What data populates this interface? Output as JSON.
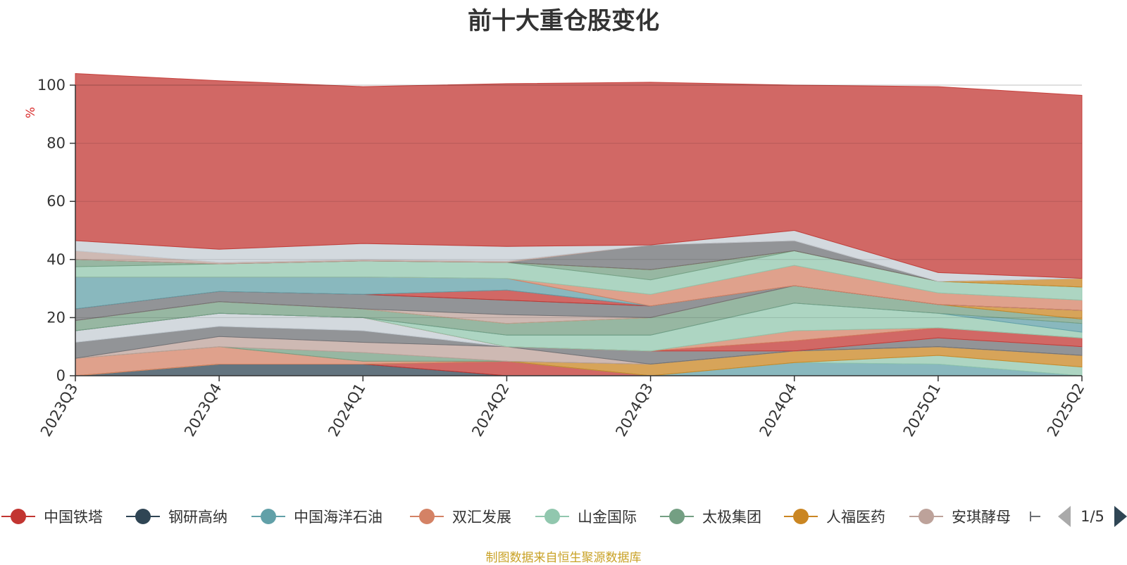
{
  "chart_data": {
    "type": "area",
    "title": "前十大重仓股变化",
    "ylabel": "%",
    "ylim": [
      0,
      100
    ],
    "yticks": [
      0,
      20,
      40,
      60,
      80,
      100
    ],
    "categories": [
      "2023Q3",
      "2023Q4",
      "2024Q1",
      "2024Q2",
      "2024Q3",
      "2024Q4",
      "2025Q1",
      "2025Q2"
    ],
    "stacked": true,
    "series": [
      {
        "name": "钢研高纳",
        "color": "#2f4554",
        "values": [
          0,
          4,
          4,
          0,
          0,
          0,
          0,
          0
        ]
      },
      {
        "name": "中国铁塔",
        "color": "#c23531",
        "values": [
          0,
          0,
          0,
          5,
          0,
          0,
          0,
          0
        ]
      },
      {
        "name": "中国海洋石油",
        "color": "#61a0a8",
        "values": [
          0,
          0,
          0,
          0,
          0,
          4.5,
          4,
          0
        ]
      },
      {
        "name": "山金国际",
        "color": "#91c7ae",
        "values": [
          0,
          0,
          0,
          0,
          0,
          0,
          3,
          3
        ]
      },
      {
        "name": "人福医药",
        "color": "#ca8622",
        "values": [
          0,
          0,
          0,
          0,
          4,
          4,
          3,
          4
        ]
      },
      {
        "name": "双汇发展",
        "color": "#d48265",
        "values": [
          6,
          6,
          1,
          0,
          0,
          0,
          0,
          0
        ]
      },
      {
        "name": "太极集团",
        "color": "#749f83",
        "values": [
          0,
          0,
          3,
          0,
          0,
          0,
          0,
          0
        ]
      },
      {
        "name": "安琪酵母",
        "color": "#bda29a",
        "values": [
          0,
          3.5,
          3.5,
          5,
          0,
          0,
          0,
          0
        ]
      },
      {
        "name": "",
        "color": "#6e7074",
        "values": [
          5.5,
          3.5,
          4,
          0,
          4.5,
          0,
          3,
          3
        ]
      },
      {
        "name": "",
        "color": "#c4ccd3",
        "values": [
          4,
          4.5,
          4.5,
          0,
          0,
          0,
          0,
          0
        ]
      },
      {
        "name": "",
        "color": "#c23531",
        "values": [
          0,
          0,
          0,
          0,
          0,
          3.5,
          3.5,
          3
        ]
      },
      {
        "name": "",
        "color": "#d48265",
        "values": [
          0,
          0,
          0,
          0,
          0,
          3.5,
          0,
          0
        ]
      },
      {
        "name": "",
        "color": "#91c7ae",
        "values": [
          0,
          0,
          0,
          4,
          5.5,
          9.5,
          5,
          2
        ]
      },
      {
        "name": "",
        "color": "#61a0a8",
        "values": [
          0,
          0,
          0,
          0,
          0,
          0,
          0,
          3
        ]
      },
      {
        "name": "",
        "color": "#749f83",
        "values": [
          3.5,
          4,
          3,
          4,
          6,
          6,
          3,
          1.5
        ]
      },
      {
        "name": "",
        "color": "#ca8622",
        "values": [
          0,
          0,
          0,
          0,
          0,
          0,
          0,
          3
        ]
      },
      {
        "name": "",
        "color": "#bda29a",
        "values": [
          0,
          0,
          0,
          3,
          0,
          0,
          0,
          0
        ]
      },
      {
        "name": "",
        "color": "#6e7074",
        "values": [
          4,
          3.5,
          5,
          5,
          4,
          0,
          0,
          0
        ]
      },
      {
        "name": "",
        "color": "#c23531",
        "values": [
          0,
          0,
          0,
          3.5,
          0,
          0,
          0,
          0
        ]
      },
      {
        "name": "",
        "color": "#61a0a8",
        "values": [
          11,
          5,
          6,
          4,
          0,
          0,
          0,
          0
        ]
      },
      {
        "name": "",
        "color": "#d48265",
        "values": [
          0,
          0,
          0,
          0,
          4,
          7,
          4,
          3.5
        ]
      },
      {
        "name": "",
        "color": "#91c7ae",
        "values": [
          3.5,
          4.5,
          5.5,
          5.5,
          5,
          5,
          4,
          4.5
        ]
      },
      {
        "name": "",
        "color": "#749f83",
        "values": [
          2.5,
          0,
          0,
          0,
          3.5,
          0,
          0,
          0
        ]
      },
      {
        "name": "",
        "color": "#ca8622",
        "values": [
          0,
          0,
          0,
          0,
          0,
          0,
          0,
          3
        ]
      },
      {
        "name": "",
        "color": "#6e7074",
        "values": [
          0,
          0,
          0,
          0,
          8.5,
          3.5,
          0,
          0
        ]
      },
      {
        "name": "",
        "color": "#bda29a",
        "values": [
          3,
          0.5,
          0.5,
          0.5,
          0,
          0,
          0,
          0
        ]
      },
      {
        "name": "",
        "color": "#c4ccd3",
        "values": [
          3.5,
          4.5,
          5.5,
          5,
          0,
          3.5,
          3,
          0
        ]
      },
      {
        "name": "",
        "color": "#c4ccd3",
        "values": [
          0,
          0,
          0,
          0,
          0,
          0,
          0,
          0
        ]
      },
      {
        "name": "",
        "color": "#c23531",
        "values": [
          57.5,
          58,
          54,
          56,
          56,
          50,
          64,
          63
        ]
      }
    ]
  },
  "legend": {
    "items": [
      {
        "name": "中国铁塔",
        "color": "#c23531"
      },
      {
        "name": "钢研高纳",
        "color": "#2f4554"
      },
      {
        "name": "中国海洋石油",
        "color": "#61a0a8"
      },
      {
        "name": "双汇发展",
        "color": "#d48265"
      },
      {
        "name": "山金国际",
        "color": "#91c7ae"
      },
      {
        "name": "太极集团",
        "color": "#749f83"
      },
      {
        "name": "人福医药",
        "color": "#ca8622"
      },
      {
        "name": "安琪酵母",
        "color": "#bda29a"
      }
    ],
    "page": "1/5"
  },
  "source_note": "制图数据来自恒生聚源数据库"
}
